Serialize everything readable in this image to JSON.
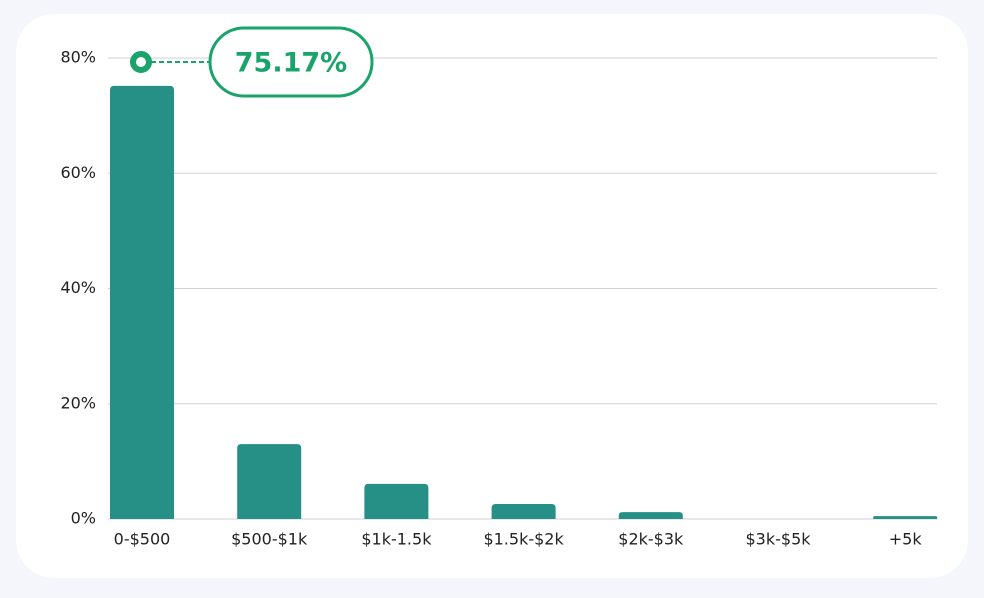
{
  "chart_data": {
    "type": "bar",
    "categories": [
      "0-$500",
      "$500-$1k",
      "$1k-1.5k",
      "$1.5k-$2k",
      "$2k-$3k",
      "$3k-$5k",
      "+5k"
    ],
    "values": [
      75.17,
      13,
      6.1,
      2.6,
      1.2,
      0,
      0.5
    ],
    "value_labels": [
      "75.17%",
      null,
      null,
      null,
      null,
      null,
      null
    ],
    "color": "#268f86",
    "ylim": [
      0,
      80
    ],
    "yticks": [
      {
        "value": 0,
        "label": "0%"
      },
      {
        "value": 20,
        "label": "20%"
      },
      {
        "value": 40,
        "label": "40%"
      },
      {
        "value": 60,
        "label": "60%"
      },
      {
        "value": 80,
        "label": "80%"
      }
    ],
    "grid": true
  }
}
